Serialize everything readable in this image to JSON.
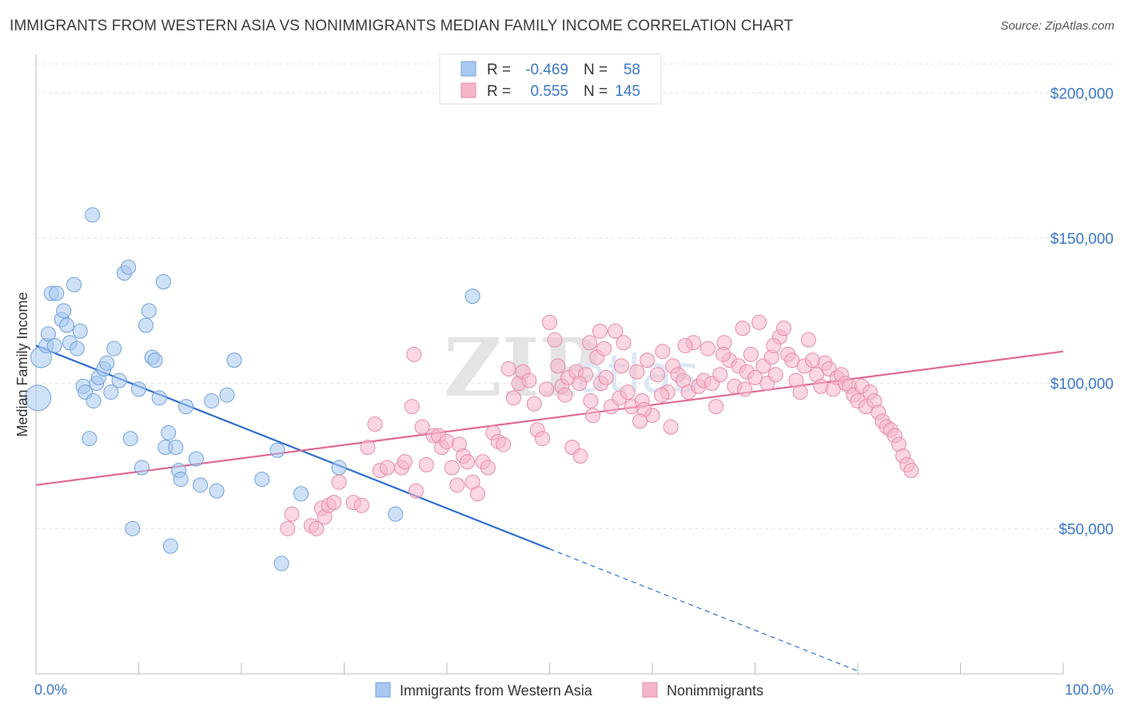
{
  "header": {
    "title": "IMMIGRANTS FROM WESTERN ASIA VS NONIMMIGRANTS MEDIAN FAMILY INCOME CORRELATION CHART",
    "source": "Source: ZipAtlas.com"
  },
  "watermark": {
    "zip": "ZIP",
    "atlas": "atlas"
  },
  "legend": {
    "r_label": "R =",
    "n_label": "N =",
    "rows": [
      {
        "r": "-0.469",
        "n": "58",
        "color": "#a8c8f0"
      },
      {
        "r": "0.555",
        "n": "145",
        "color": "#f5b6c8"
      }
    ]
  },
  "chart_data": {
    "type": "scatter",
    "title": "IMMIGRANTS FROM WESTERN ASIA VS NONIMMIGRANTS MEDIAN FAMILY INCOME CORRELATION CHART",
    "xlabel": "",
    "ylabel": "Median Family Income",
    "xlim": [
      0,
      100
    ],
    "ylim": [
      0,
      210000
    ],
    "x_tick_labels": [
      "0.0%",
      "100.0%"
    ],
    "y_ticks": [
      50000,
      100000,
      150000,
      200000
    ],
    "y_tick_labels": [
      "$50,000",
      "$100,000",
      "$150,000",
      "$200,000"
    ],
    "legend_position": "top-center",
    "series": [
      {
        "name": "Immigrants from Western Asia",
        "color": "#a8c8f0",
        "stroke": "#6fa0dc",
        "line_color": "#2f6fd0",
        "trend": {
          "x0": 0,
          "y0": 113000,
          "x1": 50,
          "y1": 43000,
          "dash_to_x": 80,
          "dash_to_y": 1000
        },
        "points": [
          [
            0.2,
            95000
          ],
          [
            0.5,
            109000
          ],
          [
            1.0,
            113000
          ],
          [
            1.2,
            117000
          ],
          [
            1.5,
            131000
          ],
          [
            1.8,
            113000
          ],
          [
            2.0,
            131000
          ],
          [
            2.5,
            122000
          ],
          [
            2.7,
            125000
          ],
          [
            3.0,
            120000
          ],
          [
            3.3,
            114000
          ],
          [
            3.7,
            134000
          ],
          [
            4.0,
            112000
          ],
          [
            4.3,
            118000
          ],
          [
            4.6,
            99000
          ],
          [
            4.8,
            97000
          ],
          [
            5.2,
            81000
          ],
          [
            5.6,
            94000
          ],
          [
            5.9,
            100000
          ],
          [
            6.1,
            102000
          ],
          [
            6.6,
            105000
          ],
          [
            6.9,
            107000
          ],
          [
            7.3,
            97000
          ],
          [
            7.6,
            112000
          ],
          [
            8.1,
            101000
          ],
          [
            8.6,
            138000
          ],
          [
            9.0,
            140000
          ],
          [
            9.2,
            81000
          ],
          [
            9.4,
            50000
          ],
          [
            10.0,
            98000
          ],
          [
            10.3,
            71000
          ],
          [
            10.7,
            120000
          ],
          [
            11.0,
            125000
          ],
          [
            11.3,
            109000
          ],
          [
            11.6,
            108000
          ],
          [
            12.0,
            95000
          ],
          [
            12.4,
            135000
          ],
          [
            12.6,
            78000
          ],
          [
            12.9,
            83000
          ],
          [
            13.1,
            44000
          ],
          [
            13.6,
            78000
          ],
          [
            13.9,
            70000
          ],
          [
            14.1,
            67000
          ],
          [
            14.6,
            92000
          ],
          [
            15.6,
            74000
          ],
          [
            16.0,
            65000
          ],
          [
            17.1,
            94000
          ],
          [
            17.6,
            63000
          ],
          [
            18.6,
            96000
          ],
          [
            19.3,
            108000
          ],
          [
            22.0,
            67000
          ],
          [
            23.5,
            77000
          ],
          [
            23.9,
            38000
          ],
          [
            25.8,
            62000
          ],
          [
            29.5,
            71000
          ],
          [
            35.0,
            55000
          ],
          [
            42.5,
            130000
          ],
          [
            5.5,
            158000
          ]
        ]
      },
      {
        "name": "Nonimmigrants",
        "color": "#f5b6c8",
        "stroke": "#e88aa8",
        "line_color": "#e06a94",
        "trend": {
          "x0": 0,
          "y0": 65000,
          "x1": 100,
          "y1": 111000
        },
        "points": [
          [
            24.5,
            50000
          ],
          [
            24.9,
            55000
          ],
          [
            26.8,
            51000
          ],
          [
            27.3,
            50000
          ],
          [
            27.8,
            57000
          ],
          [
            28.1,
            54000
          ],
          [
            28.5,
            58000
          ],
          [
            29.0,
            59000
          ],
          [
            29.5,
            66000
          ],
          [
            30.9,
            59000
          ],
          [
            31.7,
            58000
          ],
          [
            32.3,
            78000
          ],
          [
            33.0,
            86000
          ],
          [
            33.5,
            70000
          ],
          [
            34.2,
            71000
          ],
          [
            35.6,
            71000
          ],
          [
            35.9,
            73000
          ],
          [
            36.6,
            92000
          ],
          [
            36.8,
            110000
          ],
          [
            37.0,
            63000
          ],
          [
            37.6,
            85000
          ],
          [
            38.0,
            72000
          ],
          [
            38.7,
            82000
          ],
          [
            39.2,
            82000
          ],
          [
            39.5,
            78000
          ],
          [
            40.0,
            80000
          ],
          [
            40.5,
            71000
          ],
          [
            41.0,
            65000
          ],
          [
            41.2,
            79000
          ],
          [
            41.6,
            75000
          ],
          [
            42.0,
            73000
          ],
          [
            42.5,
            66000
          ],
          [
            43.0,
            62000
          ],
          [
            43.5,
            73000
          ],
          [
            44.0,
            71000
          ],
          [
            44.5,
            83000
          ],
          [
            45.0,
            80000
          ],
          [
            45.5,
            79000
          ],
          [
            46.0,
            105000
          ],
          [
            46.5,
            95000
          ],
          [
            47.0,
            100000
          ],
          [
            47.4,
            104000
          ],
          [
            48.0,
            101000
          ],
          [
            48.5,
            93000
          ],
          [
            48.8,
            84000
          ],
          [
            49.3,
            81000
          ],
          [
            49.7,
            98000
          ],
          [
            50.0,
            121000
          ],
          [
            50.5,
            115000
          ],
          [
            50.8,
            106000
          ],
          [
            51.2,
            99000
          ],
          [
            51.8,
            102000
          ],
          [
            52.2,
            78000
          ],
          [
            52.6,
            104000
          ],
          [
            53.0,
            75000
          ],
          [
            53.5,
            103000
          ],
          [
            54.0,
            94000
          ],
          [
            54.2,
            89000
          ],
          [
            54.6,
            109000
          ],
          [
            55.0,
            100000
          ],
          [
            55.5,
            102000
          ],
          [
            56.0,
            92000
          ],
          [
            56.4,
            118000
          ],
          [
            56.8,
            95000
          ],
          [
            57.2,
            114000
          ],
          [
            57.6,
            97000
          ],
          [
            58.0,
            92000
          ],
          [
            58.5,
            104000
          ],
          [
            59.0,
            94000
          ],
          [
            59.5,
            108000
          ],
          [
            60.0,
            89000
          ],
          [
            60.5,
            103000
          ],
          [
            61.0,
            111000
          ],
          [
            61.5,
            97000
          ],
          [
            62.0,
            106000
          ],
          [
            62.5,
            103000
          ],
          [
            63.0,
            101000
          ],
          [
            63.5,
            97000
          ],
          [
            64.0,
            114000
          ],
          [
            64.5,
            99000
          ],
          [
            65.0,
            101000
          ],
          [
            65.4,
            112000
          ],
          [
            65.8,
            100000
          ],
          [
            66.2,
            92000
          ],
          [
            66.6,
            103000
          ],
          [
            67.0,
            114000
          ],
          [
            67.5,
            108000
          ],
          [
            68.0,
            99000
          ],
          [
            68.4,
            106000
          ],
          [
            68.8,
            119000
          ],
          [
            69.2,
            104000
          ],
          [
            69.6,
            110000
          ],
          [
            70.0,
            102000
          ],
          [
            70.4,
            121000
          ],
          [
            70.8,
            106000
          ],
          [
            71.2,
            100000
          ],
          [
            71.6,
            109000
          ],
          [
            72.0,
            103000
          ],
          [
            72.4,
            116000
          ],
          [
            72.8,
            119000
          ],
          [
            73.2,
            110000
          ],
          [
            73.6,
            108000
          ],
          [
            74.0,
            101000
          ],
          [
            74.4,
            97000
          ],
          [
            74.8,
            106000
          ],
          [
            75.2,
            115000
          ],
          [
            75.6,
            108000
          ],
          [
            76.0,
            103000
          ],
          [
            76.4,
            99000
          ],
          [
            76.8,
            107000
          ],
          [
            77.2,
            105000
          ],
          [
            77.6,
            98000
          ],
          [
            78.0,
            102000
          ],
          [
            78.4,
            103000
          ],
          [
            78.8,
            100000
          ],
          [
            79.2,
            99000
          ],
          [
            79.6,
            96000
          ],
          [
            80.0,
            94000
          ],
          [
            80.4,
            99000
          ],
          [
            80.8,
            92000
          ],
          [
            81.2,
            97000
          ],
          [
            81.6,
            94000
          ],
          [
            82.0,
            90000
          ],
          [
            82.4,
            87000
          ],
          [
            82.8,
            85000
          ],
          [
            83.2,
            84000
          ],
          [
            83.6,
            82000
          ],
          [
            84.0,
            79000
          ],
          [
            84.4,
            75000
          ],
          [
            84.8,
            72000
          ],
          [
            85.2,
            70000
          ],
          [
            71.8,
            113000
          ],
          [
            69.0,
            98000
          ],
          [
            66.9,
            110000
          ],
          [
            63.2,
            113000
          ],
          [
            61.8,
            85000
          ],
          [
            60.9,
            96000
          ],
          [
            59.2,
            91000
          ],
          [
            58.8,
            87000
          ],
          [
            57.0,
            106000
          ],
          [
            55.3,
            112000
          ],
          [
            54.9,
            118000
          ],
          [
            53.9,
            114000
          ],
          [
            52.9,
            100000
          ],
          [
            51.5,
            96000
          ]
        ]
      }
    ]
  },
  "bottom_legend": {
    "items": [
      {
        "label": "Immigrants from Western Asia",
        "color": "#a8c8f0"
      },
      {
        "label": "Nonimmigrants",
        "color": "#f5b6c8"
      }
    ]
  }
}
